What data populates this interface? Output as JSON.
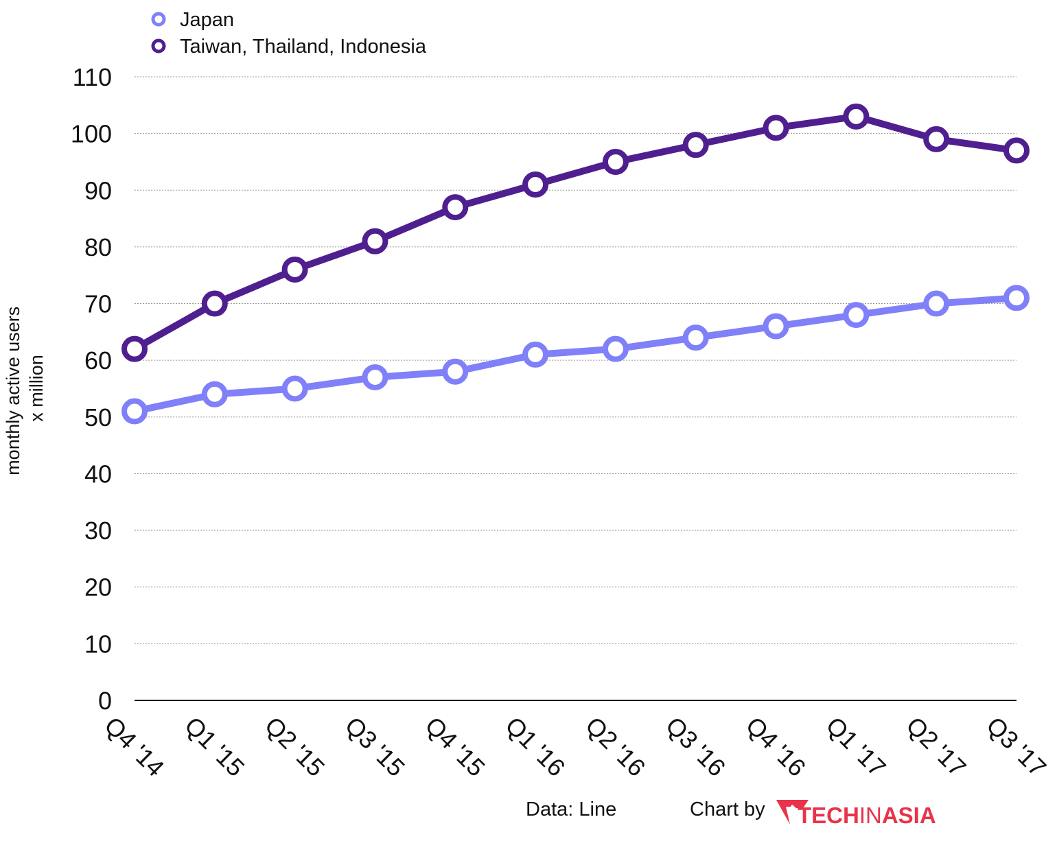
{
  "chart_data": {
    "type": "line",
    "title": "",
    "ylabel_lines": [
      "monthly active users",
      "x million"
    ],
    "xlabel": "",
    "categories": [
      "Q4 '14",
      "Q1 '15",
      "Q2 '15",
      "Q3 '15",
      "Q4 '15",
      "Q1 '16",
      "Q2 '16",
      "Q3 '16",
      "Q4 '16",
      "Q1 '17",
      "Q2 '17",
      "Q3 '17"
    ],
    "yticks": [
      0,
      10,
      20,
      30,
      40,
      50,
      60,
      70,
      80,
      90,
      100,
      110
    ],
    "ylim": [
      0,
      110
    ],
    "grid": true,
    "legend_position": "top-left",
    "series": [
      {
        "name": "Japan",
        "color": "#8080f8",
        "values": [
          51,
          54,
          55,
          57,
          58,
          61,
          62,
          64,
          66,
          68,
          70,
          71
        ]
      },
      {
        "name": "Taiwan, Thailand, Indonesia",
        "color": "#4f1f8f",
        "values": [
          62,
          70,
          76,
          81,
          87,
          91,
          95,
          98,
          101,
          103,
          99,
          97
        ]
      }
    ]
  },
  "footer": {
    "source": "Data: Line",
    "credit": "Chart by",
    "logo_part1": "TECH",
    "logo_part2": "IN",
    "logo_part3": "ASIA",
    "logo_color": "#e8334a"
  }
}
